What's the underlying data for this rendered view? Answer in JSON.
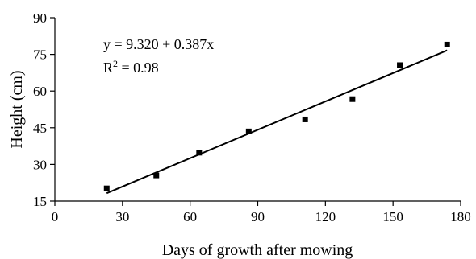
{
  "chart_data": {
    "type": "scatter",
    "title": "",
    "xlabel": "Days of growth after mowing",
    "ylabel": "Height (cm)",
    "xlim": [
      0,
      180
    ],
    "ylim": [
      15,
      90
    ],
    "xticks": [
      0,
      30,
      60,
      90,
      120,
      150,
      180
    ],
    "yticks": [
      15,
      30,
      45,
      60,
      75,
      90
    ],
    "grid": false,
    "series": [
      {
        "marker": "square",
        "color": "#000000",
        "points": [
          {
            "x": 23,
            "y": 20.2
          },
          {
            "x": 45,
            "y": 25.5
          },
          {
            "x": 64,
            "y": 34.8
          },
          {
            "x": 86,
            "y": 43.5
          },
          {
            "x": 111,
            "y": 48.4
          },
          {
            "x": 132,
            "y": 56.7
          },
          {
            "x": 153,
            "y": 70.6
          },
          {
            "x": 174,
            "y": 79.0
          }
        ]
      }
    ],
    "fit_line": {
      "intercept": 9.32,
      "slope": 0.387,
      "x_range": [
        23,
        174
      ]
    },
    "annotations": {
      "equation": "y = 9.320 + 0.387x",
      "r2_label": "R",
      "r2_sup": "2",
      "r2_value": " = 0.98"
    }
  }
}
